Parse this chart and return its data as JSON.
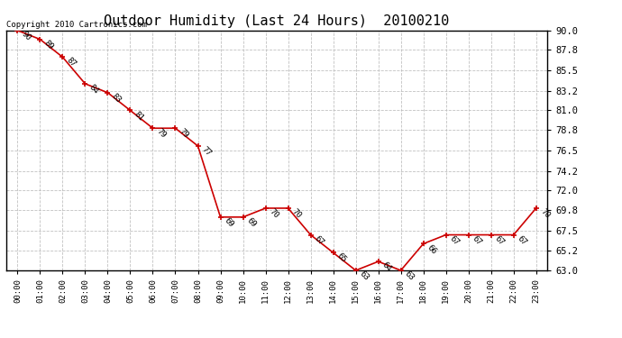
{
  "title": "Outdoor Humidity (Last 24 Hours)  20100210",
  "copyright": "Copyright 2010 Cartronics.com",
  "x_labels": [
    "00:00",
    "01:00",
    "02:00",
    "03:00",
    "04:00",
    "05:00",
    "06:00",
    "07:00",
    "08:00",
    "09:00",
    "10:00",
    "11:00",
    "12:00",
    "13:00",
    "14:00",
    "15:00",
    "16:00",
    "17:00",
    "18:00",
    "19:00",
    "20:00",
    "21:00",
    "22:00",
    "23:00"
  ],
  "hours": [
    0,
    1,
    2,
    3,
    4,
    5,
    6,
    7,
    8,
    9,
    10,
    11,
    12,
    13,
    14,
    15,
    16,
    17,
    18,
    19,
    20,
    21,
    22,
    23
  ],
  "values": [
    90,
    89,
    87,
    84,
    83,
    81,
    79,
    79,
    77,
    69,
    69,
    70,
    70,
    67,
    65,
    63,
    64,
    63,
    66,
    67,
    67,
    67,
    67,
    70
  ],
  "point_labels": [
    "90",
    "89",
    "87",
    "84",
    "83",
    "81",
    "79",
    "79",
    "77",
    "69",
    "69",
    "70",
    "70",
    "67",
    "65",
    "63",
    "64",
    "63",
    "66",
    "67",
    "67",
    "67",
    "67",
    "70"
  ],
  "ylim_min": 63.0,
  "ylim_max": 90.0,
  "yticks": [
    63.0,
    65.2,
    67.5,
    69.8,
    72.0,
    74.2,
    76.5,
    78.8,
    81.0,
    83.2,
    85.5,
    87.8,
    90.0
  ],
  "line_color": "#cc0000",
  "marker_color": "#cc0000",
  "bg_color": "#ffffff",
  "grid_color": "#bbbbbb",
  "title_fontsize": 11,
  "label_fontsize": 6.5,
  "copyright_fontsize": 6.5,
  "tick_fontsize": 7.5,
  "xtick_fontsize": 6.5
}
